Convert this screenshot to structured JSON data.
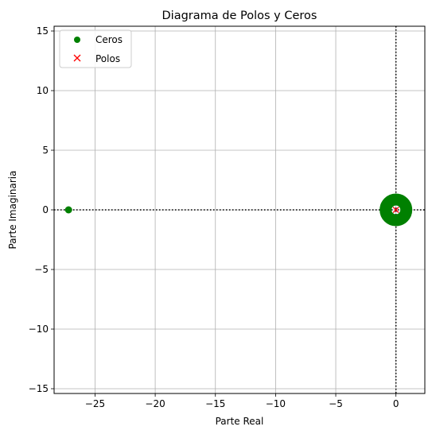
{
  "chart_data": {
    "type": "scatter",
    "title": "Diagrama de Polos y Ceros",
    "xlabel": "Parte Real",
    "ylabel": "Parte Imaginaria",
    "xlim": [
      -28.4,
      2.4
    ],
    "ylim": [
      -15.4,
      15.4
    ],
    "x_ticks": [
      -25,
      -20,
      -15,
      -10,
      -5,
      0
    ],
    "y_ticks": [
      -15,
      -10,
      -5,
      0,
      5,
      10,
      15
    ],
    "x_tick_labels": [
      "−25",
      "−20",
      "−15",
      "−10",
      "−5",
      "0"
    ],
    "y_tick_labels": [
      "−15",
      "−10",
      "−5",
      "0",
      "5",
      "10",
      "15"
    ],
    "grid": true,
    "reference_lines": {
      "x": 0,
      "y": 0,
      "style": "dotted",
      "color": "#000000"
    },
    "legend": {
      "placement": "upper-left",
      "entries": [
        {
          "label": "Ceros",
          "marker": "circle",
          "color": "#008000"
        },
        {
          "label": "Polos",
          "marker": "x",
          "color": "#ff0000"
        }
      ]
    },
    "series": [
      {
        "name": "Ceros",
        "marker": "circle",
        "color": "#008000",
        "points": [
          {
            "x": -27.2,
            "y": 0
          },
          {
            "x": 0,
            "y": 0
          },
          {
            "x": 0,
            "y": 0
          },
          {
            "x": 0,
            "y": 0
          },
          {
            "x": 0,
            "y": 0
          },
          {
            "x": 0,
            "y": 0
          },
          {
            "x": 0,
            "y": 0
          }
        ]
      },
      {
        "name": "Polos",
        "marker": "x",
        "color": "#ff0000",
        "points": [
          {
            "x": 0,
            "y": 0
          }
        ]
      }
    ]
  }
}
